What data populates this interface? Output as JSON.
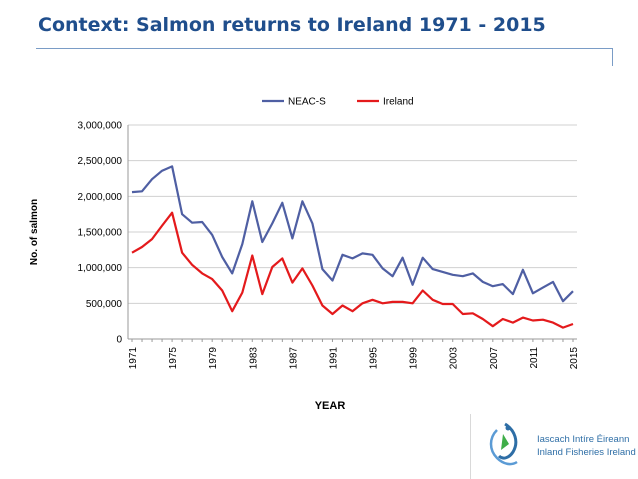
{
  "slide": {
    "title": "Context: Salmon returns to Ireland 1971 - 2015",
    "logo_text_1": "Iascach Intíre Éireann",
    "logo_text_2": "Inland Fisheries Ireland",
    "logo_icon": "fish-swirl-logo",
    "accent_color": "#1f4e8c"
  },
  "chart_data": {
    "type": "line",
    "title": "",
    "xlabel": "YEAR",
    "ylabel": "No. of salmon",
    "x": [
      1971,
      1972,
      1973,
      1974,
      1975,
      1976,
      1977,
      1978,
      1979,
      1980,
      1981,
      1982,
      1983,
      1984,
      1985,
      1986,
      1987,
      1988,
      1989,
      1990,
      1991,
      1992,
      1993,
      1994,
      1995,
      1996,
      1997,
      1998,
      1999,
      2000,
      2001,
      2002,
      2003,
      2004,
      2005,
      2006,
      2007,
      2008,
      2009,
      2010,
      2011,
      2012,
      2013,
      2014,
      2015
    ],
    "x_tick_labels": [
      "1971",
      "1975",
      "1979",
      "1983",
      "1987",
      "1991",
      "1995",
      "1999",
      "2003",
      "2007",
      "2011",
      "2015"
    ],
    "y_tick_labels": [
      "0",
      "500,000",
      "1,000,000",
      "1,500,000",
      "2,000,000",
      "2,500,000",
      "3,000,000"
    ],
    "ylim": [
      0,
      3000000
    ],
    "y_ticks": [
      0,
      500000,
      1000000,
      1500000,
      2000000,
      2500000,
      3000000
    ],
    "legend_position": "top",
    "series": [
      {
        "name": "NEAC-S",
        "color": "#4f5fa3",
        "values": [
          2060000,
          2070000,
          2240000,
          2360000,
          2420000,
          1750000,
          1630000,
          1640000,
          1460000,
          1150000,
          920000,
          1330000,
          1930000,
          1360000,
          1620000,
          1910000,
          1410000,
          1930000,
          1620000,
          980000,
          820000,
          1180000,
          1130000,
          1200000,
          1180000,
          990000,
          880000,
          1140000,
          760000,
          1140000,
          980000,
          940000,
          900000,
          880000,
          920000,
          800000,
          740000,
          770000,
          630000,
          970000,
          640000,
          720000,
          800000,
          530000,
          670000
        ]
      },
      {
        "name": "Ireland",
        "color": "#e41a1c",
        "values": [
          1210000,
          1290000,
          1400000,
          1590000,
          1770000,
          1210000,
          1040000,
          920000,
          840000,
          680000,
          390000,
          650000,
          1170000,
          630000,
          1010000,
          1130000,
          790000,
          990000,
          750000,
          470000,
          350000,
          470000,
          390000,
          500000,
          550000,
          500000,
          520000,
          520000,
          500000,
          680000,
          550000,
          490000,
          490000,
          350000,
          360000,
          280000,
          180000,
          280000,
          230000,
          300000,
          260000,
          270000,
          230000,
          160000,
          210000
        ]
      }
    ]
  }
}
